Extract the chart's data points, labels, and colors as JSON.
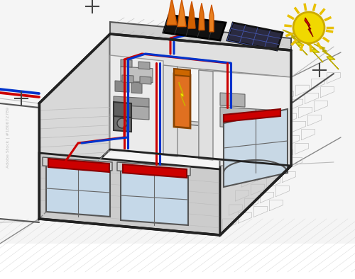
{
  "bg_color": "#ffffff",
  "pipe_hot": "#cc0000",
  "pipe_cold": "#0033cc",
  "radiator_color": "#cc0000",
  "wall_light": "#e8e8e8",
  "wall_mid": "#d0d0d0",
  "wall_dark": "#b0b0b0",
  "interior_bg": "#f0f0f0",
  "floor_color": "#c8c8c8",
  "furniture_gray": "#aaaaaa",
  "solar_fin_color": "#e8820a",
  "solar_panel_color": "#1a1a1a",
  "pv_color": "#2a2a40",
  "pv_arrow_color": "#e8e800",
  "sun_yellow": "#f0d800",
  "sun_ray_color": "#e8c000",
  "sun_bolt_red": "#cc1100",
  "orange_boiler": "#e07020",
  "outline_color": "#222222",
  "gray_line": "#666666",
  "hatch_color": "#cccccc",
  "brick_color": "#d5d5d5"
}
